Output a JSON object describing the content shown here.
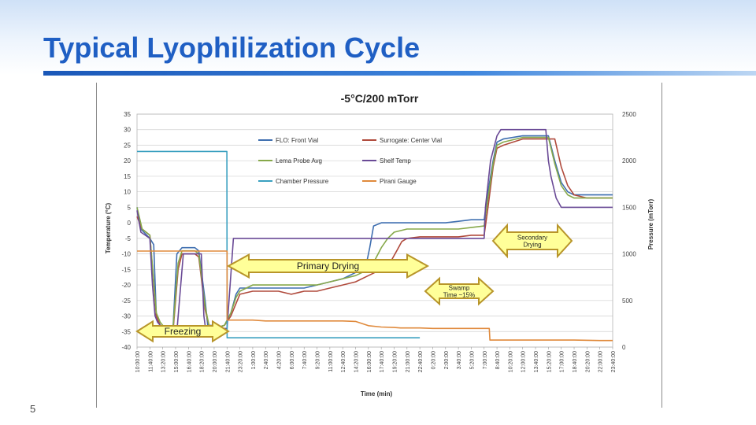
{
  "slide": {
    "title": "Typical Lyophilization Cycle",
    "page_number": "5"
  },
  "colors": {
    "title": "#1f5fc4",
    "arrow_fill": "#ffff99",
    "arrow_stroke": "#b8952a",
    "FLO: Front Vial": "#3f6fb0",
    "Surrogate: Center Vial": "#b04a3c",
    "Lema Probe Avg": "#86a84a",
    "Shelf Temp": "#6a4a96",
    "Chamber Pressure": "#3aa0c0",
    "Pirani Gauge": "#e08a3c"
  },
  "chart_data": {
    "type": "line",
    "title": "-5°C/200 mTorr",
    "xlabel": "Time (min)",
    "ylabel": "Temperature (°C)",
    "y2label": "Pressure (mTorr)",
    "ylim": [
      -40,
      35
    ],
    "y2lim": [
      0,
      2500
    ],
    "yticks": [
      "35",
      "30",
      "25",
      "20",
      "15",
      "10",
      "5",
      "0",
      "-5",
      "-10",
      "-15",
      "-20",
      "-25",
      "-30",
      "-35",
      "-40"
    ],
    "y2ticks": [
      "2500",
      "2000",
      "1500",
      "1000",
      "500",
      "0"
    ],
    "xlim": [
      0,
      37
    ],
    "xticks": [
      "10:00:00",
      "11:40:00",
      "13:20:00",
      "15:00:00",
      "16:40:00",
      "18:20:00",
      "20:00:00",
      "21:40:00",
      "23:20:00",
      "1:00:00",
      "2:40:00",
      "4:20:00",
      "6:00:00",
      "7:40:00",
      "9:20:00",
      "11:00:00",
      "12:40:00",
      "14:20:00",
      "16:00:00",
      "17:40:00",
      "19:20:00",
      "21:00:00",
      "22:40:00",
      "0:20:00",
      "2:00:00",
      "3:40:00",
      "5:20:00",
      "7:00:00",
      "8:40:00",
      "10:20:00",
      "12:00:00",
      "13:40:00",
      "15:20:00",
      "17:00:00",
      "18:40:00",
      "20:20:00",
      "22:00:00",
      "23:40:00"
    ],
    "legend_position": "top",
    "series": [
      {
        "name": "FLO: Front Vial",
        "axis": "left",
        "x": [
          0,
          0.3,
          1,
          1.3,
          1.5,
          1.8,
          2,
          2.8,
          3.1,
          3.5,
          4,
          4.5,
          4.8,
          5.3,
          5.5,
          5.8,
          6,
          6.8,
          7.3,
          7.7,
          8,
          9,
          10,
          11,
          12,
          13,
          14,
          15,
          16,
          17,
          17.8,
          18.1,
          18.4,
          19,
          20,
          21,
          22,
          23,
          24,
          25,
          26,
          27,
          27.3,
          27.7,
          28,
          28.5,
          30,
          31,
          32,
          32.5,
          33,
          33.5,
          34,
          35,
          36,
          37
        ],
        "y": [
          5,
          -2,
          -5,
          -7,
          -30,
          -33,
          -34,
          -34,
          -10,
          -8,
          -8,
          -8,
          -9,
          -25,
          -33,
          -33,
          -34,
          -33,
          -29,
          -23,
          -21,
          -21,
          -21,
          -21,
          -21,
          -21,
          -20,
          -19,
          -18,
          -16,
          -14,
          -8,
          -1,
          0,
          0,
          0,
          0,
          0,
          0,
          0.5,
          1,
          1,
          10,
          20,
          26,
          27,
          28,
          28,
          28,
          20,
          13,
          10,
          9,
          9,
          9,
          9
        ]
      },
      {
        "name": "Surrogate: Center Vial",
        "axis": "left",
        "x": [
          0,
          0.4,
          1,
          1.5,
          1.8,
          2,
          2.3,
          2.8,
          3.2,
          3.5,
          4,
          4.5,
          4.8,
          5.3,
          5.6,
          6,
          6.8,
          7.3,
          7.7,
          8,
          9,
          10,
          11,
          12,
          13,
          14,
          15,
          16,
          17,
          18,
          19,
          19.8,
          20.2,
          20.6,
          21,
          22,
          23,
          24,
          25,
          26,
          27,
          27.3,
          27.7,
          28,
          28.5,
          30,
          31,
          32,
          32.5,
          33,
          33.5,
          34,
          35,
          36,
          37
        ],
        "y": [
          2,
          -2,
          -4,
          -30,
          -33,
          -34,
          -35,
          -35,
          -15,
          -10,
          -10,
          -10,
          -11,
          -28,
          -33,
          -34,
          -33,
          -30,
          -26,
          -23,
          -22,
          -22,
          -22,
          -23,
          -22,
          -22,
          -21,
          -20,
          -19,
          -17,
          -15,
          -12,
          -9,
          -6,
          -5,
          -4.5,
          -4.5,
          -4.5,
          -4.5,
          -4,
          -4,
          5,
          18,
          24,
          25,
          27,
          27,
          27,
          27,
          18,
          12,
          9,
          8,
          8,
          8
        ]
      },
      {
        "name": "Lema Probe Avg",
        "axis": "left",
        "x": [
          0,
          0.4,
          1,
          1.5,
          1.8,
          2,
          2.3,
          2.8,
          3.2,
          3.5,
          4,
          4.5,
          4.8,
          5.3,
          5.6,
          6,
          6.8,
          7.3,
          7.7,
          8,
          9,
          10,
          11,
          12,
          13,
          14,
          15,
          16,
          17,
          17.5,
          18,
          18.5,
          19,
          19.5,
          20,
          21,
          22,
          23,
          24,
          25,
          26,
          27,
          27.3,
          27.7,
          28,
          28.5,
          30,
          31,
          32,
          32.5,
          33,
          33.5,
          34,
          35,
          36,
          37
        ],
        "y": [
          5,
          -2,
          -4,
          -29,
          -32,
          -33,
          -34,
          -34,
          -13,
          -9,
          -9,
          -9,
          -10,
          -27,
          -33,
          -34,
          -33,
          -29,
          -24,
          -22,
          -20,
          -20,
          -20,
          -20,
          -20,
          -20,
          -19,
          -18,
          -17,
          -16,
          -15,
          -12,
          -8,
          -5,
          -3,
          -2,
          -2,
          -2,
          -2,
          -2,
          -1.5,
          -1,
          8,
          19,
          25,
          26,
          27.5,
          27.5,
          27.5,
          19,
          12,
          9,
          8,
          8,
          8,
          8
        ]
      },
      {
        "name": "Shelf Temp",
        "axis": "left",
        "x": [
          0,
          0.3,
          1,
          1.2,
          1.4,
          1.6,
          1.8,
          2.8,
          3.1,
          3.6,
          4,
          4.6,
          5,
          5.2,
          5.3,
          5.8,
          6,
          6.3,
          7,
          7.5,
          8,
          9,
          10,
          11,
          12,
          13,
          14,
          15,
          16,
          17,
          18,
          19,
          20,
          21,
          22,
          23,
          24,
          25,
          26,
          27,
          27.1,
          27.5,
          28,
          28.3,
          28.5,
          30,
          31,
          31.5,
          31.8,
          32,
          32.2,
          32.6,
          33,
          33.3,
          33.5,
          34,
          35,
          36,
          37
        ],
        "y": [
          4,
          -3,
          -5,
          -20,
          -30,
          -32,
          -33,
          -35,
          -35,
          -10,
          -10,
          -10,
          -10,
          -30,
          -33,
          -34,
          -34,
          -34,
          -34,
          -5,
          -5,
          -5,
          -5,
          -5,
          -5,
          -5,
          -5,
          -5,
          -5,
          -5,
          -5,
          -5,
          -5,
          -5,
          -5,
          -5,
          -5,
          -5,
          -5,
          -5,
          5,
          20,
          28,
          30,
          30,
          30,
          30,
          30,
          30,
          20,
          15,
          8,
          5,
          5,
          5,
          5,
          5,
          5,
          5
        ]
      },
      {
        "name": "Chamber Pressure",
        "axis": "right",
        "x": [
          0,
          1,
          2,
          3,
          4,
          5,
          6,
          6.99,
          7.01,
          8,
          9,
          10,
          11,
          12,
          13,
          14,
          15,
          16,
          17,
          18,
          19,
          20,
          21,
          22
        ],
        "y": [
          2100,
          2100,
          2100,
          2100,
          2100,
          2100,
          2100,
          2100,
          100,
          100,
          100,
          100,
          100,
          100,
          100,
          100,
          100,
          100,
          100,
          100,
          100,
          100,
          100,
          100
        ]
      },
      {
        "name": "Pirani Gauge",
        "axis": "right",
        "x": [
          0,
          1,
          2,
          3,
          4,
          5,
          6,
          7,
          7.01,
          8,
          9,
          10,
          11,
          12,
          13,
          14,
          15,
          16,
          17,
          18,
          19,
          20,
          20.5,
          21,
          22,
          23,
          24,
          25,
          26,
          27,
          27.4,
          27.45,
          28,
          30,
          32,
          34,
          36,
          37
        ],
        "y": [
          1030,
          1030,
          1030,
          1030,
          1030,
          1030,
          1030,
          1030,
          290,
          290,
          290,
          280,
          280,
          280,
          280,
          280,
          280,
          280,
          275,
          230,
          215,
          210,
          205,
          205,
          205,
          200,
          200,
          200,
          200,
          200,
          200,
          75,
          75,
          75,
          75,
          75,
          70,
          70
        ]
      }
    ],
    "annotations": [
      {
        "label": "Freezing"
      },
      {
        "label": "Primary Drying"
      },
      {
        "label": "Swamp Time ~15%"
      },
      {
        "label": "Secondary Drying"
      }
    ]
  }
}
